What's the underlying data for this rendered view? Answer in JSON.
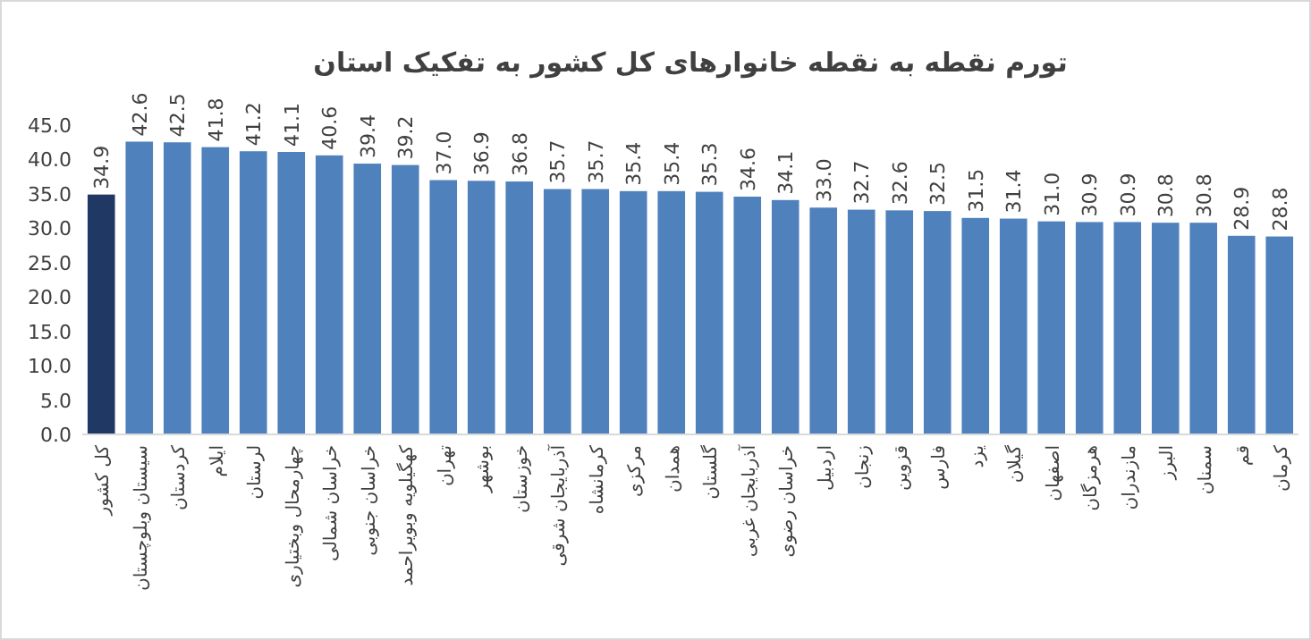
{
  "chart_data": {
    "type": "bar",
    "title": "تورم  نقطه به نقطه خانوارهای کل کشور به تفکیک استان",
    "categories": [
      "کل کشور",
      "سیستان وبلوچستان",
      "کردستان",
      "ایلام",
      "لرستان",
      "چهارمحال وبختیاری",
      "خراسان شمالی",
      "خراسان جنوبی",
      "کهگیلویه وبویراحمد",
      "تهران",
      "بوشهر",
      "خوزستان",
      "آذربایجان شرقی",
      "کرمانشاه",
      "مرکزی",
      "همدان",
      "گلستان",
      "آذربایجان غربی",
      "خراسان رضوی",
      "اردبیل",
      "زنجان",
      "قزوین",
      "فارس",
      "یزد",
      "گیلان",
      "اصفهان",
      "هرمزگان",
      "مازندران",
      "البرز",
      "سمنان",
      "قم",
      "کرمان"
    ],
    "values": [
      34.9,
      42.6,
      42.5,
      41.8,
      41.2,
      41.1,
      40.6,
      39.4,
      39.2,
      37.0,
      36.9,
      36.8,
      35.7,
      35.7,
      35.4,
      35.4,
      35.3,
      34.6,
      34.1,
      33.0,
      32.7,
      32.6,
      32.5,
      31.5,
      31.4,
      31.0,
      30.9,
      30.9,
      30.8,
      30.8,
      28.9,
      28.8
    ],
    "value_labels": [
      "34.9",
      "42.6",
      "42.5",
      "41.8",
      "41.2",
      "41.1",
      "40.6",
      "39.4",
      "39.2",
      "37.0",
      "36.9",
      "36.8",
      "35.7",
      "35.7",
      "35.4",
      "35.4",
      "35.3",
      "34.6",
      "34.1",
      "33.0",
      "32.7",
      "32.6",
      "32.5",
      "31.5",
      "31.4",
      "31.0",
      "30.9",
      "30.9",
      "30.8",
      "30.8",
      "28.9",
      "28.8"
    ],
    "colors": [
      "#1f3864",
      "#4f81bd",
      "#4f81bd",
      "#4f81bd",
      "#4f81bd",
      "#4f81bd",
      "#4f81bd",
      "#4f81bd",
      "#4f81bd",
      "#4f81bd",
      "#4f81bd",
      "#4f81bd",
      "#4f81bd",
      "#4f81bd",
      "#4f81bd",
      "#4f81bd",
      "#4f81bd",
      "#4f81bd",
      "#4f81bd",
      "#4f81bd",
      "#4f81bd",
      "#4f81bd",
      "#4f81bd",
      "#4f81bd",
      "#4f81bd",
      "#4f81bd",
      "#4f81bd",
      "#4f81bd",
      "#4f81bd",
      "#4f81bd",
      "#4f81bd",
      "#4f81bd"
    ],
    "ylim": [
      0,
      45
    ],
    "yticks": [
      {
        "value": 0,
        "label": "0.0"
      },
      {
        "value": 5,
        "label": "5.0"
      },
      {
        "value": 10,
        "label": "10.0"
      },
      {
        "value": 15,
        "label": "15.0"
      },
      {
        "value": 20,
        "label": "20.0"
      },
      {
        "value": 25,
        "label": "25.0"
      },
      {
        "value": 30,
        "label": "30.0"
      },
      {
        "value": 35,
        "label": "35.0"
      },
      {
        "value": 40,
        "label": "40.0"
      },
      {
        "value": 45,
        "label": "45.0"
      }
    ],
    "grid": false
  }
}
